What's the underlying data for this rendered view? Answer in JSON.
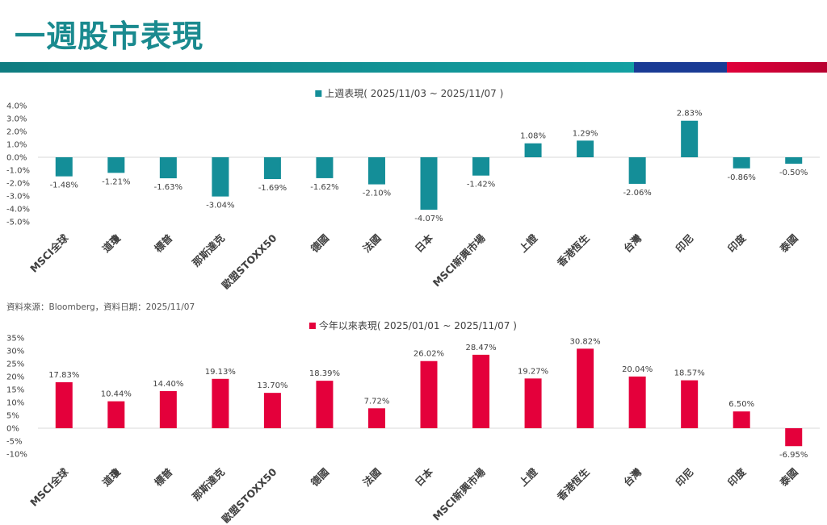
{
  "page": {
    "title": "一週股市表現",
    "source": "資料來源：Bloomberg，資料日期：2025/11/07"
  },
  "colors": {
    "title": "#1a8a8f",
    "weekly": "#148e98",
    "ytd": "#e4003b",
    "grid": "#d9d9d9"
  },
  "chart_data": [
    {
      "type": "bar",
      "legend": "上週表現( 2025/11/03 ~ 2025/11/07 )",
      "categories": [
        "MSCI全球",
        "道瓊",
        "標普",
        "那斯達克",
        "歐盟STOXX50",
        "德國",
        "法國",
        "日本",
        "MSCI新興市場",
        "上證",
        "香港恆生",
        "台灣",
        "印尼",
        "印度",
        "泰國"
      ],
      "values": [
        -1.48,
        -1.21,
        -1.63,
        -3.04,
        -1.69,
        -1.62,
        -2.1,
        -4.07,
        -1.42,
        1.08,
        1.29,
        -2.06,
        2.83,
        -0.86,
        -0.5
      ],
      "labels": [
        "-1.48%",
        "-1.21%",
        "-1.63%",
        "-3.04%",
        "-1.69%",
        "-1.62%",
        "-2.10%",
        "-4.07%",
        "-1.42%",
        "1.08%",
        "1.29%",
        "-2.06%",
        "2.83%",
        "-0.86%",
        "-0.50%"
      ],
      "yticks": [
        "4.0%",
        "3.0%",
        "2.0%",
        "1.0%",
        "0.0%",
        "-1.0%",
        "-2.0%",
        "-3.0%",
        "-4.0%",
        "-5.0%"
      ],
      "ylim": [
        -5,
        4
      ]
    },
    {
      "type": "bar",
      "legend": "今年以來表現( 2025/01/01 ~ 2025/11/07 )",
      "categories": [
        "MSCI全球",
        "道瓊",
        "標普",
        "那斯達克",
        "歐盟STOXX50",
        "德國",
        "法國",
        "日本",
        "MSCI新興市場",
        "上證",
        "香港恆生",
        "台灣",
        "印尼",
        "印度",
        "泰國"
      ],
      "values": [
        17.83,
        10.44,
        14.4,
        19.13,
        13.7,
        18.39,
        7.72,
        26.02,
        28.47,
        19.27,
        30.82,
        20.04,
        18.57,
        6.5,
        -6.95
      ],
      "labels": [
        "17.83%",
        "10.44%",
        "14.40%",
        "19.13%",
        "13.70%",
        "18.39%",
        "7.72%",
        "26.02%",
        "28.47%",
        "19.27%",
        "30.82%",
        "20.04%",
        "18.57%",
        "6.50%",
        "-6.95%"
      ],
      "yticks": [
        "35%",
        "30%",
        "25%",
        "20%",
        "15%",
        "10%",
        "5%",
        "0%",
        "-5%",
        "-10%"
      ],
      "ylim": [
        -10,
        35
      ]
    }
  ]
}
